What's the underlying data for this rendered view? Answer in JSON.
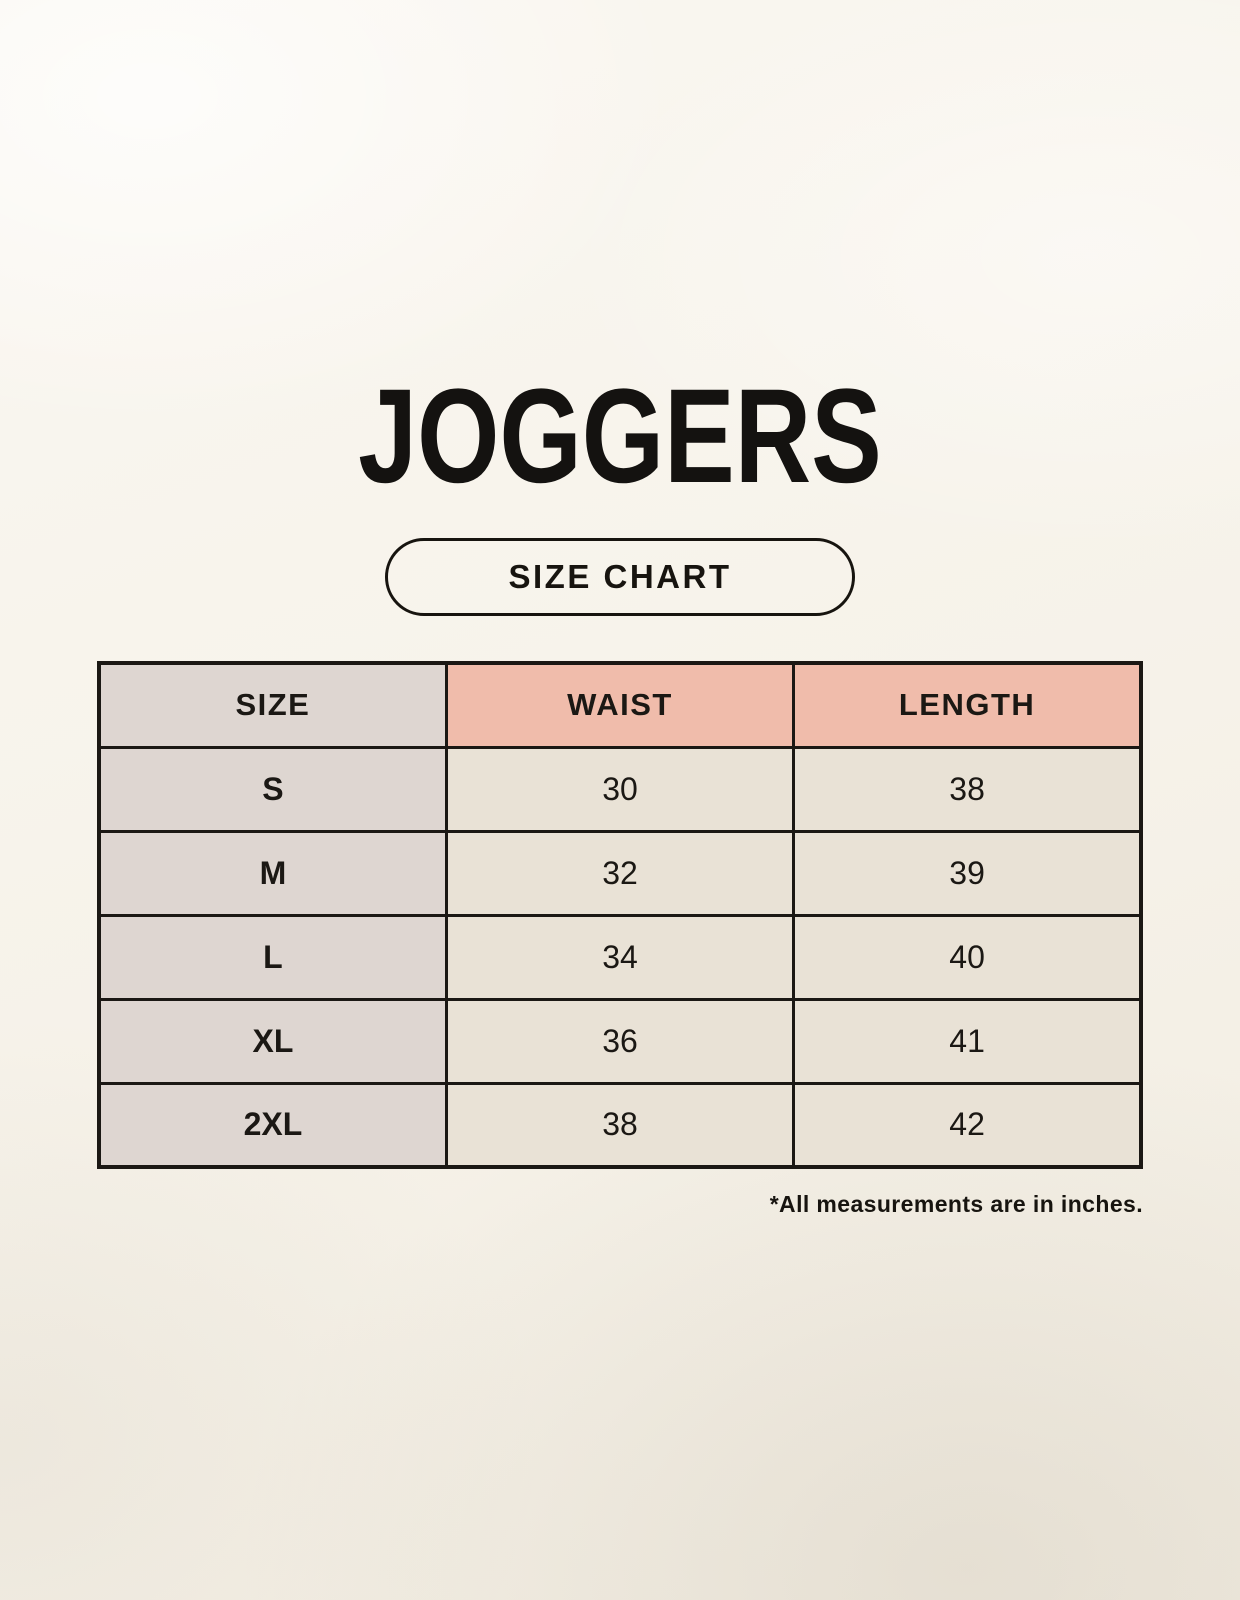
{
  "title": "JOGGERS",
  "size_chart_button": {
    "label": "SIZE CHART"
  },
  "size_table": {
    "columns": [
      "SIZE",
      "WAIST",
      "LENGTH"
    ],
    "rows": [
      {
        "size": "S",
        "waist": "30",
        "length": "38"
      },
      {
        "size": "M",
        "waist": "32",
        "length": "39"
      },
      {
        "size": "L",
        "waist": "34",
        "length": "40"
      },
      {
        "size": "XL",
        "waist": "36",
        "length": "41"
      },
      {
        "size": "2XL",
        "waist": "38",
        "length": "42"
      }
    ]
  },
  "footnote": "*All measurements are in inches.",
  "colors": {
    "background": "#f6f2e9",
    "text": "#1b1814",
    "table_border": "#1b1814",
    "size_column_bg": "#ded6d1",
    "header_accent_bg": "#f0bcab",
    "data_cell_bg": "#e9e2d6"
  }
}
